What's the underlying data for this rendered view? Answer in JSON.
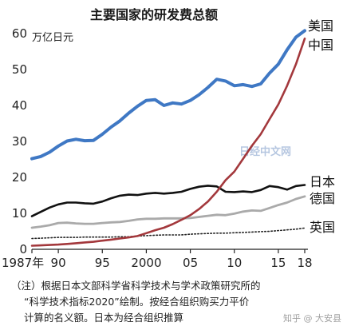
{
  "chart_data": {
    "type": "line",
    "title": "主要国家的研发费总额",
    "unit_label": "万亿日元",
    "x": [
      1987,
      1988,
      1989,
      1990,
      1991,
      1992,
      1993,
      1994,
      1995,
      1996,
      1997,
      1998,
      1999,
      2000,
      2001,
      2002,
      2003,
      2004,
      2005,
      2006,
      2007,
      2008,
      2009,
      2010,
      2011,
      2012,
      2013,
      2014,
      2015,
      2016,
      2017,
      2018
    ],
    "x_ticks": [
      {
        "value": 1987,
        "label": "1987年"
      },
      {
        "value": 1990,
        "label": "90"
      },
      {
        "value": 1995,
        "label": "95"
      },
      {
        "value": 2000,
        "label": "2000"
      },
      {
        "value": 2005,
        "label": "05"
      },
      {
        "value": 2010,
        "label": "10"
      },
      {
        "value": 2015,
        "label": "15"
      },
      {
        "value": 2018,
        "label": "18"
      }
    ],
    "y_ticks": [
      0,
      10,
      20,
      30,
      40,
      50,
      60
    ],
    "ylim": [
      0,
      60
    ],
    "xlim": [
      1987,
      2018
    ],
    "grid": false,
    "series": [
      {
        "name": "美国",
        "color": "#3f78c4",
        "style": "solid-thick",
        "values": [
          25.2,
          25.8,
          27.0,
          28.7,
          30.1,
          30.6,
          30.2,
          30.3,
          32.0,
          34.0,
          35.7,
          37.9,
          39.8,
          41.4,
          41.6,
          40.0,
          40.7,
          40.4,
          41.4,
          43.0,
          45.0,
          47.3,
          46.8,
          45.5,
          45.8,
          45.3,
          46.0,
          49.0,
          51.5,
          55.5,
          59.0,
          60.8
        ]
      },
      {
        "name": "中国",
        "color": "#a3383c",
        "style": "solid",
        "values": [
          1.0,
          1.1,
          1.2,
          1.3,
          1.5,
          1.7,
          1.9,
          2.1,
          2.4,
          2.7,
          3.0,
          3.3,
          3.7,
          4.5,
          5.3,
          6.0,
          7.0,
          8.2,
          9.5,
          11.2,
          13.3,
          16.0,
          19.2,
          21.6,
          25.2,
          28.8,
          32.0,
          36.2,
          40.3,
          45.5,
          51.5,
          58.6
        ]
      },
      {
        "name": "日本",
        "color": "#111111",
        "style": "solid",
        "values": [
          9.2,
          10.4,
          11.6,
          12.5,
          13.0,
          13.0,
          12.8,
          12.7,
          13.3,
          14.2,
          14.9,
          15.2,
          15.1,
          15.5,
          15.7,
          15.5,
          15.7,
          16.0,
          16.8,
          17.4,
          17.7,
          17.5,
          16.0,
          15.9,
          16.1,
          15.9,
          16.5,
          17.6,
          17.3,
          16.6,
          17.6,
          17.9
        ]
      },
      {
        "name": "德国",
        "color": "#aaaaaa",
        "style": "solid",
        "values": [
          6.0,
          6.3,
          6.7,
          7.3,
          7.4,
          7.2,
          7.1,
          7.1,
          7.3,
          7.5,
          7.6,
          7.9,
          8.3,
          8.5,
          8.5,
          8.6,
          8.6,
          8.6,
          8.7,
          9.0,
          9.3,
          9.6,
          9.5,
          9.9,
          10.5,
          10.8,
          10.7,
          11.5,
          12.3,
          13.0,
          14.0,
          14.7
        ]
      },
      {
        "name": "英国",
        "color": "#222222",
        "style": "dotted",
        "values": [
          3.0,
          3.1,
          3.2,
          3.3,
          3.3,
          3.3,
          3.4,
          3.4,
          3.4,
          3.4,
          3.5,
          3.5,
          3.7,
          3.8,
          3.9,
          4.0,
          4.0,
          4.0,
          4.2,
          4.3,
          4.4,
          4.5,
          4.5,
          4.6,
          4.7,
          4.8,
          4.9,
          5.0,
          5.2,
          5.4,
          5.6,
          5.9
        ]
      }
    ]
  },
  "watermark_text": "日经中文网",
  "note": {
    "line1": "（注）根据日本文部科学省科学技术与学术政策研究所的",
    "line2": "“科学技术指标2020”绘制。按经合组织购买力平价",
    "line3": "计算的名义额。日本为经合组织推算"
  },
  "credit": "知乎 @ 大安县"
}
